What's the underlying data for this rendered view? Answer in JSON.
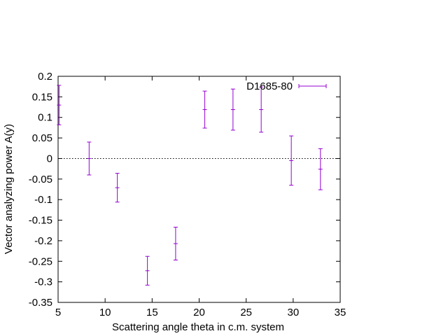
{
  "chart_data": {
    "type": "scatter",
    "title": "",
    "xlabel": "Scattering angle theta in c.m. system",
    "ylabel": "Vector analyzing power A(y)",
    "xlim": [
      5,
      35
    ],
    "ylim": [
      -0.35,
      0.2
    ],
    "xticks": [
      5,
      10,
      15,
      20,
      25,
      30,
      35
    ],
    "yticks": [
      0.2,
      0.15,
      0.1,
      0.05,
      0,
      -0.05,
      -0.1,
      -0.15,
      -0.2,
      -0.25,
      -0.3,
      -0.35
    ],
    "xtick_labels": [
      "5",
      "10",
      "15",
      "20",
      "25",
      "30",
      "35"
    ],
    "ytick_labels": [
      "0.2",
      "0.15",
      "0.1",
      "0.05",
      "0",
      "-0.05",
      "-0.1",
      "-0.15",
      "-0.2",
      "-0.25",
      "-0.3",
      "-0.35"
    ],
    "zero_line": true,
    "legend_position": "top-right",
    "series": [
      {
        "name": "D1685-80",
        "color": "#9400d3",
        "points": [
          {
            "x": 5.1,
            "y": 0.13,
            "err": 0.048
          },
          {
            "x": 8.3,
            "y": 0.0,
            "err": 0.04
          },
          {
            "x": 11.3,
            "y": -0.071,
            "err": 0.035
          },
          {
            "x": 14.5,
            "y": -0.273,
            "err": 0.035
          },
          {
            "x": 17.5,
            "y": -0.207,
            "err": 0.04
          },
          {
            "x": 20.6,
            "y": 0.119,
            "err": 0.045
          },
          {
            "x": 23.6,
            "y": 0.119,
            "err": 0.05
          },
          {
            "x": 26.6,
            "y": 0.119,
            "err": 0.055
          },
          {
            "x": 29.8,
            "y": -0.005,
            "err": 0.06
          },
          {
            "x": 32.9,
            "y": -0.026,
            "err": 0.05
          }
        ]
      }
    ]
  }
}
